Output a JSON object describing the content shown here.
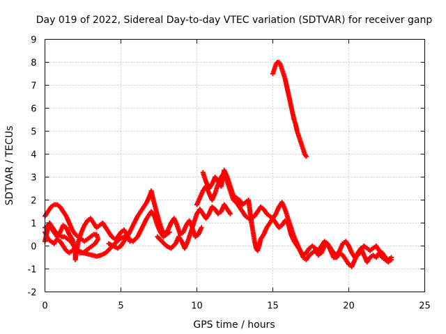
{
  "chart_data": {
    "type": "scatter",
    "title": "Day 019 of 2022, Sidereal Day-to-day VTEC variation (SDTVAR) for receiver ganp",
    "xlabel": "GPS time / hours",
    "ylabel": "SDTVAR / TECUs",
    "xlim": [
      0,
      25
    ],
    "ylim": [
      -2,
      9
    ],
    "x_ticks": [
      "0",
      "5",
      "10",
      "15",
      "20",
      "25"
    ],
    "y_ticks": [
      "-2",
      "-1",
      "0",
      "1",
      "2",
      "3",
      "4",
      "5",
      "6",
      "7",
      "8",
      "9"
    ],
    "grid": true,
    "marker": "+",
    "color": "#ff0000",
    "series": [
      {
        "name": "track-1",
        "points": [
          [
            0.0,
            1.3
          ],
          [
            0.2,
            1.5
          ],
          [
            0.4,
            1.7
          ],
          [
            0.6,
            1.8
          ],
          [
            0.8,
            1.8
          ],
          [
            1.0,
            1.7
          ],
          [
            1.2,
            1.5
          ],
          [
            1.4,
            1.3
          ],
          [
            1.6,
            1.0
          ],
          [
            1.8,
            0.7
          ],
          [
            2.0,
            0.5
          ],
          [
            2.2,
            0.4
          ],
          [
            2.4,
            0.3
          ],
          [
            2.6,
            0.2
          ],
          [
            2.8,
            0.3
          ],
          [
            3.0,
            0.4
          ],
          [
            3.2,
            0.5
          ],
          [
            3.4,
            0.5
          ],
          [
            3.5,
            0.3
          ],
          [
            3.3,
            0.1
          ],
          [
            3.1,
            0.0
          ],
          [
            2.9,
            -0.1
          ],
          [
            2.7,
            -0.2
          ],
          [
            2.5,
            -0.3
          ],
          [
            2.3,
            -0.3
          ],
          [
            2.1,
            -0.2
          ],
          [
            1.9,
            0.0
          ],
          [
            1.7,
            0.2
          ],
          [
            1.5,
            0.3
          ],
          [
            1.3,
            0.4
          ],
          [
            1.1,
            0.4
          ],
          [
            0.9,
            0.5
          ],
          [
            0.7,
            0.6
          ],
          [
            0.5,
            0.8
          ],
          [
            0.3,
            1.0
          ],
          [
            0.2,
            0.8
          ],
          [
            0.1,
            0.5
          ],
          [
            0.0,
            0.2
          ]
        ]
      },
      {
        "name": "track-2",
        "points": [
          [
            0.0,
            0.8
          ],
          [
            0.2,
            0.9
          ],
          [
            0.4,
            0.8
          ],
          [
            0.6,
            0.6
          ],
          [
            0.8,
            0.4
          ],
          [
            1.0,
            0.6
          ],
          [
            1.2,
            0.9
          ],
          [
            1.4,
            0.8
          ],
          [
            1.6,
            0.5
          ],
          [
            1.8,
            0.3
          ],
          [
            1.9,
            0.1
          ],
          [
            2.0,
            -0.3
          ],
          [
            2.0,
            -0.6
          ],
          [
            2.1,
            -0.2
          ],
          [
            2.2,
            0.2
          ],
          [
            2.4,
            0.6
          ],
          [
            2.6,
            0.9
          ],
          [
            2.8,
            1.1
          ],
          [
            3.0,
            1.2
          ],
          [
            3.2,
            1.0
          ],
          [
            3.4,
            0.8
          ],
          [
            3.6,
            0.9
          ],
          [
            3.8,
            1.0
          ],
          [
            4.0,
            0.8
          ],
          [
            4.2,
            0.6
          ],
          [
            4.4,
            0.4
          ],
          [
            4.6,
            0.3
          ],
          [
            4.8,
            0.4
          ],
          [
            5.0,
            0.6
          ],
          [
            5.2,
            0.7
          ],
          [
            5.4,
            0.5
          ],
          [
            5.6,
            0.2
          ]
        ]
      },
      {
        "name": "track-3",
        "points": [
          [
            0.0,
            0.6
          ],
          [
            0.2,
            0.3
          ],
          [
            0.4,
            0.2
          ],
          [
            0.6,
            0.1
          ],
          [
            0.8,
            0.3
          ],
          [
            1.0,
            0.2
          ],
          [
            1.2,
            0.0
          ],
          [
            1.4,
            -0.2
          ],
          [
            1.6,
            -0.3
          ],
          [
            1.8,
            -0.2
          ],
          [
            2.0,
            -0.1
          ],
          [
            2.2,
            -0.2
          ],
          [
            2.5,
            -0.3
          ],
          [
            2.8,
            -0.35
          ],
          [
            3.1,
            -0.4
          ],
          [
            3.4,
            -0.45
          ],
          [
            3.7,
            -0.4
          ],
          [
            4.0,
            -0.3
          ],
          [
            4.3,
            -0.1
          ],
          [
            4.6,
            0.1
          ],
          [
            4.9,
            0.3
          ],
          [
            5.2,
            0.4
          ],
          [
            5.5,
            0.3
          ],
          [
            5.8,
            0.2
          ],
          [
            6.1,
            0.4
          ],
          [
            6.4,
            0.8
          ],
          [
            6.7,
            1.2
          ],
          [
            7.0,
            1.5
          ],
          [
            7.2,
            1.3
          ],
          [
            7.4,
            0.9
          ],
          [
            7.6,
            0.6
          ],
          [
            7.8,
            0.4
          ],
          [
            8.0,
            0.5
          ],
          [
            8.2,
            0.6
          ]
        ]
      },
      {
        "name": "track-4",
        "points": [
          [
            4.2,
            0.1
          ],
          [
            4.5,
            0.0
          ],
          [
            4.8,
            -0.1
          ],
          [
            5.0,
            0.0
          ],
          [
            5.2,
            0.2
          ],
          [
            5.5,
            0.5
          ],
          [
            5.8,
            0.9
          ],
          [
            6.1,
            1.3
          ],
          [
            6.4,
            1.6
          ],
          [
            6.7,
            1.9
          ],
          [
            6.9,
            2.2
          ],
          [
            7.0,
            2.4
          ],
          [
            7.1,
            2.1
          ],
          [
            7.3,
            1.6
          ],
          [
            7.5,
            1.1
          ],
          [
            7.7,
            0.7
          ],
          [
            7.9,
            0.5
          ],
          [
            8.1,
            0.7
          ],
          [
            8.3,
            1.0
          ],
          [
            8.5,
            1.2
          ],
          [
            8.7,
            0.9
          ],
          [
            8.9,
            0.5
          ],
          [
            9.1,
            0.6
          ],
          [
            9.3,
            0.9
          ],
          [
            9.5,
            1.1
          ],
          [
            9.7,
            0.8
          ],
          [
            9.9,
            0.4
          ],
          [
            10.1,
            0.5
          ],
          [
            10.3,
            0.8
          ]
        ]
      },
      {
        "name": "track-5",
        "points": [
          [
            7.4,
            0.4
          ],
          [
            7.7,
            0.2
          ],
          [
            8.0,
            0.0
          ],
          [
            8.3,
            -0.1
          ],
          [
            8.6,
            0.1
          ],
          [
            8.8,
            0.4
          ],
          [
            9.0,
            0.2
          ],
          [
            9.2,
            -0.1
          ],
          [
            9.4,
            0.2
          ],
          [
            9.6,
            0.6
          ],
          [
            9.8,
            1.0
          ],
          [
            10.0,
            1.4
          ],
          [
            10.2,
            1.6
          ],
          [
            10.4,
            1.4
          ],
          [
            10.6,
            1.2
          ],
          [
            10.8,
            1.4
          ],
          [
            11.0,
            1.7
          ],
          [
            11.2,
            1.6
          ],
          [
            11.4,
            1.4
          ],
          [
            11.6,
            1.5
          ],
          [
            11.8,
            1.8
          ],
          [
            12.0,
            1.6
          ],
          [
            12.2,
            1.4
          ]
        ]
      },
      {
        "name": "track-6",
        "points": [
          [
            10.0,
            1.8
          ],
          [
            10.2,
            2.1
          ],
          [
            10.4,
            2.4
          ],
          [
            10.6,
            2.6
          ],
          [
            10.8,
            2.3
          ],
          [
            11.0,
            2.0
          ],
          [
            11.2,
            2.3
          ],
          [
            11.4,
            2.7
          ],
          [
            11.6,
            3.0
          ],
          [
            11.8,
            3.2
          ],
          [
            12.0,
            2.8
          ],
          [
            12.2,
            2.4
          ],
          [
            12.4,
            2.0
          ],
          [
            12.6,
            1.9
          ],
          [
            12.8,
            1.7
          ],
          [
            13.0,
            1.5
          ],
          [
            13.2,
            1.3
          ],
          [
            13.4,
            1.2
          ],
          [
            13.6,
            1.2
          ],
          [
            13.8,
            1.3
          ],
          [
            14.0,
            1.5
          ],
          [
            14.2,
            1.7
          ],
          [
            14.4,
            1.6
          ],
          [
            14.6,
            1.4
          ],
          [
            14.8,
            1.3
          ],
          [
            15.0,
            1.2
          ],
          [
            15.2,
            1.4
          ],
          [
            15.4,
            1.7
          ],
          [
            15.6,
            1.9
          ],
          [
            15.8,
            1.6
          ],
          [
            16.0,
            1.2
          ],
          [
            16.2,
            0.8
          ],
          [
            16.4,
            0.4
          ],
          [
            16.6,
            0.1
          ],
          [
            16.8,
            -0.2
          ],
          [
            17.0,
            -0.5
          ],
          [
            17.2,
            -0.6
          ],
          [
            17.4,
            -0.4
          ],
          [
            17.6,
            -0.3
          ],
          [
            17.8,
            -0.2
          ],
          [
            18.0,
            -0.4
          ],
          [
            18.2,
            -0.3
          ],
          [
            18.4,
            0.0
          ],
          [
            18.6,
            0.1
          ],
          [
            18.8,
            -0.2
          ],
          [
            19.0,
            -0.5
          ],
          [
            19.2,
            -0.5
          ],
          [
            19.4,
            -0.3
          ],
          [
            19.6,
            -0.4
          ],
          [
            19.8,
            -0.6
          ],
          [
            20.0,
            -0.8
          ],
          [
            20.2,
            -0.9
          ],
          [
            20.4,
            -0.6
          ],
          [
            20.6,
            -0.3
          ],
          [
            20.8,
            -0.1
          ],
          [
            21.0,
            -0.4
          ],
          [
            21.2,
            -0.7
          ],
          [
            21.4,
            -0.5
          ],
          [
            21.6,
            -0.4
          ],
          [
            21.8,
            -0.5
          ],
          [
            22.0,
            -0.3
          ],
          [
            22.2,
            -0.5
          ],
          [
            22.4,
            -0.6
          ],
          [
            22.6,
            -0.7
          ],
          [
            22.8,
            -0.6
          ]
        ]
      },
      {
        "name": "track-7",
        "points": [
          [
            10.4,
            3.2
          ],
          [
            10.6,
            2.8
          ],
          [
            10.8,
            2.5
          ],
          [
            11.0,
            2.7
          ],
          [
            11.2,
            3.0
          ],
          [
            11.4,
            2.8
          ],
          [
            11.6,
            2.6
          ],
          [
            11.8,
            3.3
          ],
          [
            12.0,
            3.0
          ],
          [
            12.2,
            2.6
          ],
          [
            12.4,
            2.2
          ],
          [
            12.6,
            2.1
          ],
          [
            12.8,
            2.0
          ],
          [
            13.0,
            1.8
          ],
          [
            13.2,
            1.9
          ],
          [
            13.4,
            2.0
          ],
          [
            13.5,
            1.5
          ],
          [
            13.6,
            1.0
          ],
          [
            13.7,
            0.6
          ],
          [
            13.8,
            0.2
          ],
          [
            13.9,
            -0.1
          ],
          [
            14.0,
            -0.2
          ],
          [
            14.1,
            0.0
          ],
          [
            14.2,
            0.3
          ],
          [
            14.4,
            0.5
          ],
          [
            14.6,
            0.8
          ],
          [
            14.8,
            1.0
          ],
          [
            15.0,
            1.2
          ],
          [
            15.2,
            1.0
          ],
          [
            15.4,
            0.8
          ],
          [
            15.6,
            0.9
          ],
          [
            15.8,
            1.1
          ],
          [
            16.0,
            1.0
          ],
          [
            16.2,
            0.5
          ],
          [
            16.4,
            0.2
          ],
          [
            16.6,
            0.0
          ],
          [
            16.8,
            -0.2
          ],
          [
            17.0,
            -0.4
          ],
          [
            17.2,
            -0.3
          ],
          [
            17.4,
            -0.1
          ],
          [
            17.6,
            0.0
          ],
          [
            17.8,
            -0.1
          ],
          [
            18.0,
            -0.2
          ],
          [
            18.2,
            0.0
          ],
          [
            18.4,
            0.2
          ],
          [
            18.6,
            0.1
          ],
          [
            18.8,
            -0.1
          ],
          [
            19.0,
            -0.3
          ],
          [
            19.2,
            -0.4
          ],
          [
            19.4,
            -0.2
          ],
          [
            19.6,
            0.1
          ],
          [
            19.8,
            0.2
          ],
          [
            20.0,
            0.0
          ],
          [
            20.2,
            -0.3
          ],
          [
            20.4,
            -0.5
          ],
          [
            20.6,
            -0.4
          ],
          [
            20.8,
            -0.2
          ],
          [
            21.0,
            0.0
          ],
          [
            21.2,
            -0.1
          ],
          [
            21.4,
            -0.2
          ],
          [
            21.6,
            -0.1
          ],
          [
            21.8,
            0.0
          ],
          [
            22.0,
            -0.2
          ],
          [
            22.2,
            -0.3
          ],
          [
            22.4,
            -0.5
          ],
          [
            22.6,
            -0.6
          ],
          [
            22.8,
            -0.5
          ]
        ]
      },
      {
        "name": "track-8",
        "points": [
          [
            15.0,
            7.5
          ],
          [
            15.1,
            7.7
          ],
          [
            15.2,
            7.9
          ],
          [
            15.3,
            8.0
          ],
          [
            15.4,
            8.0
          ],
          [
            15.5,
            7.9
          ],
          [
            15.6,
            7.7
          ],
          [
            15.7,
            7.5
          ],
          [
            15.8,
            7.3
          ],
          [
            15.9,
            7.0
          ],
          [
            16.0,
            6.7
          ],
          [
            16.1,
            6.4
          ],
          [
            16.2,
            6.1
          ],
          [
            16.3,
            5.8
          ],
          [
            16.4,
            5.5
          ],
          [
            16.5,
            5.3
          ],
          [
            16.6,
            5.0
          ],
          [
            16.7,
            4.8
          ],
          [
            16.8,
            4.6
          ],
          [
            16.9,
            4.4
          ],
          [
            17.0,
            4.2
          ],
          [
            17.1,
            4.0
          ],
          [
            17.2,
            3.9
          ]
        ]
      }
    ]
  }
}
